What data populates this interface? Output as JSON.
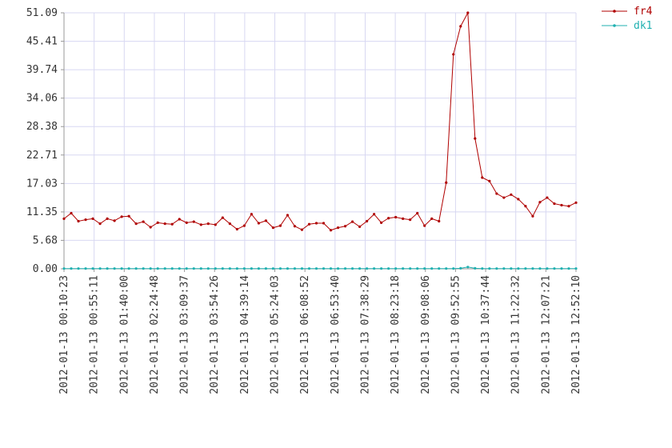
{
  "chart_data": {
    "type": "line",
    "title": "",
    "xlabel": "",
    "ylabel": "",
    "ylim": [
      0,
      51.09
    ],
    "y_ticks": [
      "0.00",
      "5.68",
      "11.35",
      "17.03",
      "22.71",
      "28.38",
      "34.06",
      "39.74",
      "45.41",
      "51.09"
    ],
    "x_ticks": [
      "2012-01-13 00:10:23",
      "2012-01-13 00:55:11",
      "2012-01-13 01:40:00",
      "2012-01-13 02:24:48",
      "2012-01-13 03:09:37",
      "2012-01-13 03:54:26",
      "2012-01-13 04:39:14",
      "2012-01-13 05:24:03",
      "2012-01-13 06:08:52",
      "2012-01-13 06:53:40",
      "2012-01-13 07:38:29",
      "2012-01-13 08:23:18",
      "2012-01-13 09:08:06",
      "2012-01-13 09:52:55",
      "2012-01-13 10:37:44",
      "2012-01-13 11:22:32",
      "2012-01-13 12:07:21",
      "2012-01-13 12:52:10"
    ],
    "x_range": [
      "2012-01-13 00:10:23",
      "2012-01-13 12:52:10"
    ],
    "grid": true,
    "legend_position": "top-right",
    "series": [
      {
        "name": "fr4",
        "color": "#b00000",
        "values": [
          10.0,
          11.1,
          9.5,
          9.8,
          10.0,
          9.0,
          10.0,
          9.6,
          10.4,
          10.5,
          9.0,
          9.4,
          8.3,
          9.2,
          9.0,
          8.9,
          9.9,
          9.2,
          9.4,
          8.8,
          9.0,
          8.8,
          10.2,
          9.0,
          7.9,
          8.6,
          10.9,
          9.1,
          9.6,
          8.2,
          8.6,
          10.7,
          8.5,
          7.8,
          8.9,
          9.1,
          9.1,
          7.7,
          8.2,
          8.5,
          9.4,
          8.4,
          9.5,
          10.9,
          9.2,
          10.1,
          10.3,
          10.0,
          9.8,
          11.1,
          8.6,
          10.0,
          9.5,
          17.2,
          42.8,
          48.4,
          51.09,
          26.0,
          18.2,
          17.5,
          15.0,
          14.2,
          14.8,
          13.9,
          12.5,
          10.5,
          13.3,
          14.2,
          13.0,
          12.7,
          12.5,
          13.2
        ]
      },
      {
        "name": "dk1",
        "color": "#20b0b0",
        "values": [
          0.05,
          0.05,
          0.05,
          0.05,
          0.05,
          0.05,
          0.05,
          0.05,
          0.05,
          0.05,
          0.05,
          0.05,
          0.05,
          0.05,
          0.05,
          0.05,
          0.05,
          0.05,
          0.05,
          0.05,
          0.05,
          0.05,
          0.05,
          0.05,
          0.05,
          0.05,
          0.05,
          0.05,
          0.05,
          0.05,
          0.05,
          0.05,
          0.05,
          0.05,
          0.05,
          0.05,
          0.05,
          0.05,
          0.05,
          0.05,
          0.05,
          0.05,
          0.05,
          0.05,
          0.05,
          0.05,
          0.05,
          0.05,
          0.05,
          0.05,
          0.05,
          0.05,
          0.05,
          0.05,
          0.05,
          0.1,
          0.35,
          0.1,
          0.05,
          0.05,
          0.05,
          0.05,
          0.05,
          0.05,
          0.05,
          0.05,
          0.05,
          0.05,
          0.05,
          0.05,
          0.05,
          0.05
        ]
      }
    ]
  }
}
